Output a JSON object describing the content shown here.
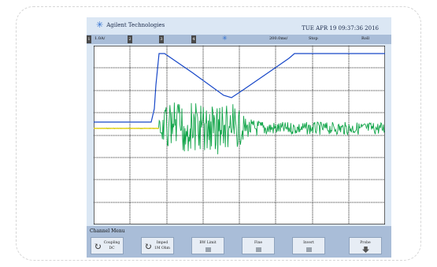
{
  "brand": {
    "logo_icon": "agilent-spark-icon",
    "name": "Agilent Technologies"
  },
  "datetime": "TUE APR 19 09:37:36 2016",
  "status_bar": {
    "ch1_number": "1",
    "ch1_scale": "1.0A/",
    "ch2_number": "2",
    "ch3_number": "3",
    "ch4_number": "4",
    "trigger_icon": "trigger-spark-icon",
    "timebase": "200.0ms/",
    "run_state": "Stop",
    "mode": "Roll"
  },
  "trace_colors": {
    "current": "#1747c8",
    "signal": "#12a54a",
    "ground_marker": "#e6d21a",
    "grid": "#000000"
  },
  "menu": {
    "title": "Channel Menu",
    "softkeys": [
      {
        "label": "Coupling",
        "value": "DC",
        "icon": "rotate-icon"
      },
      {
        "label": "Imped",
        "value": "1M Ohm",
        "icon": "rotate-icon"
      },
      {
        "label": "BW Limit",
        "icon": "checkbox-icon"
      },
      {
        "label": "Fine",
        "icon": "checkbox-icon"
      },
      {
        "label": "Invert",
        "icon": "checkbox-icon"
      },
      {
        "label": "Probe",
        "icon": "down-arrow-icon"
      }
    ]
  }
}
